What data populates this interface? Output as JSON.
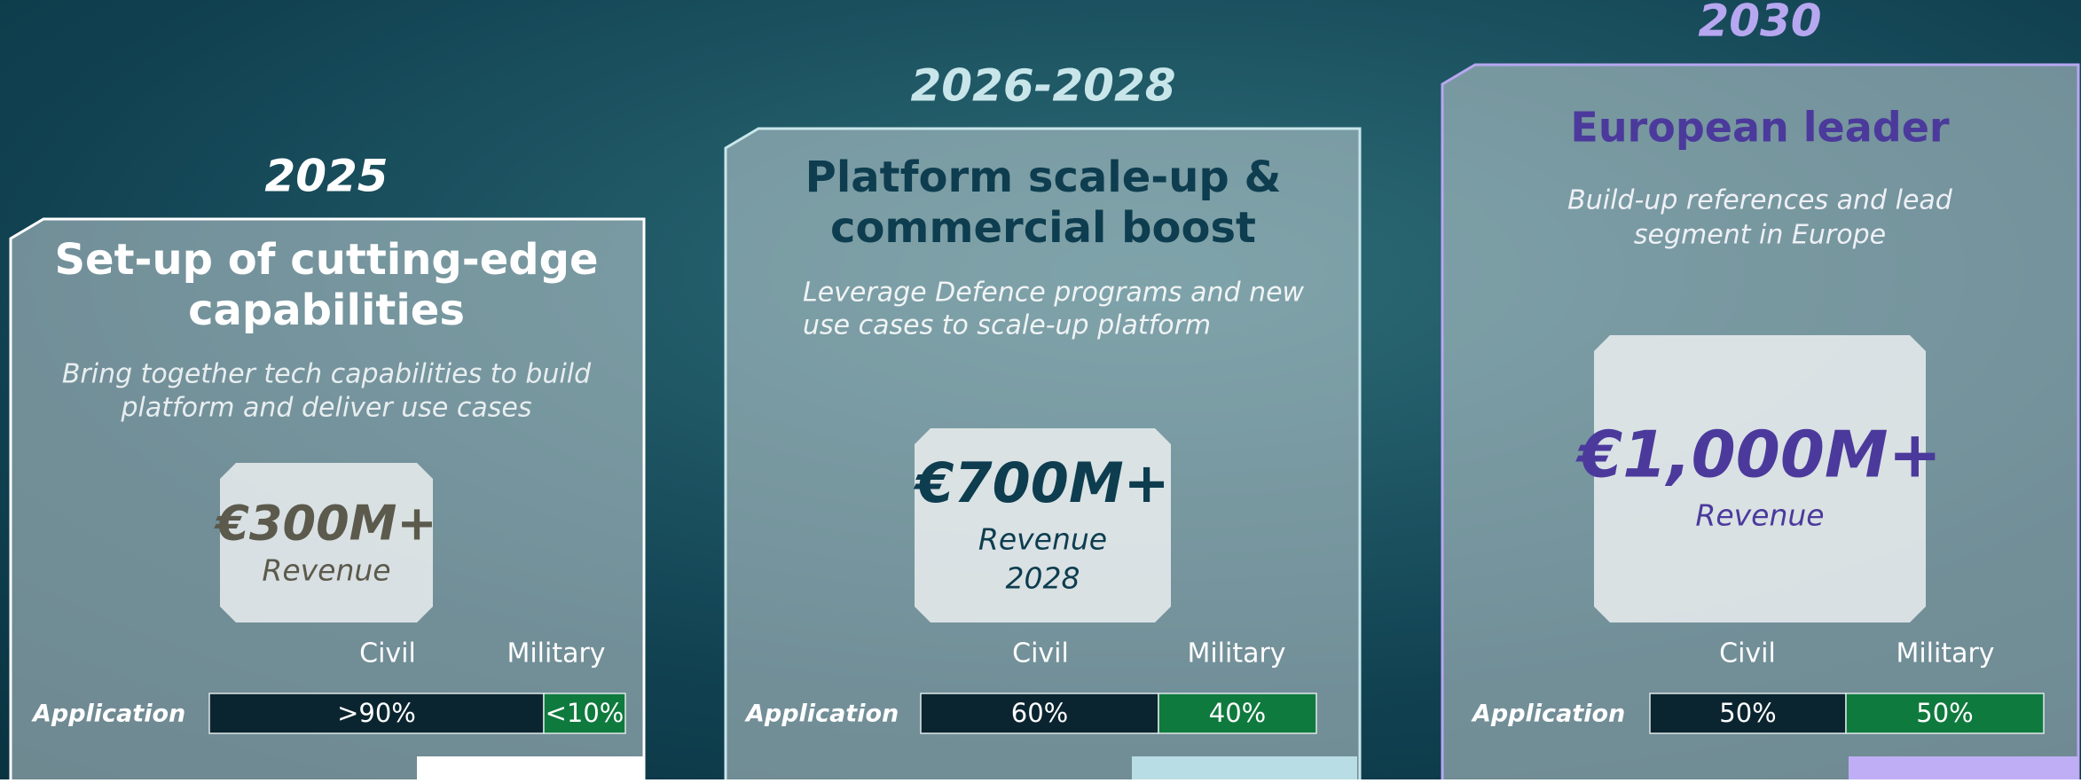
{
  "panels": [
    {
      "year": "2025",
      "title": [
        "Set-up of cutting-edge",
        "capabilities"
      ],
      "subtitle": [
        "Bring together tech capabilities to build",
        "platform and deliver use cases"
      ],
      "revenue": "€300M+",
      "revenue_label": [
        "Revenue"
      ],
      "civil": "Civil",
      "military": "Military",
      "application": "Application",
      "civil_share": ">90%",
      "military_share": "<10%"
    },
    {
      "year": "2026-2028",
      "title": [
        "Platform scale-up &",
        "commercial boost"
      ],
      "subtitle": [
        "Leverage Defence programs and new",
        "use cases to scale-up platform"
      ],
      "revenue": "€700M+",
      "revenue_label": [
        "Revenue",
        "2028"
      ],
      "civil": "Civil",
      "military": "Military",
      "application": "Application",
      "civil_share": "60%",
      "military_share": "40%"
    },
    {
      "year": "2030",
      "title": [
        "European leader"
      ],
      "subtitle": [
        "Build-up references and lead",
        "segment in Europe"
      ],
      "revenue": "€1,000M+",
      "revenue_label": [
        "Revenue"
      ],
      "civil": "Civil",
      "military": "Military",
      "application": "Application",
      "civil_share": "50%",
      "military_share": "50%"
    }
  ]
}
